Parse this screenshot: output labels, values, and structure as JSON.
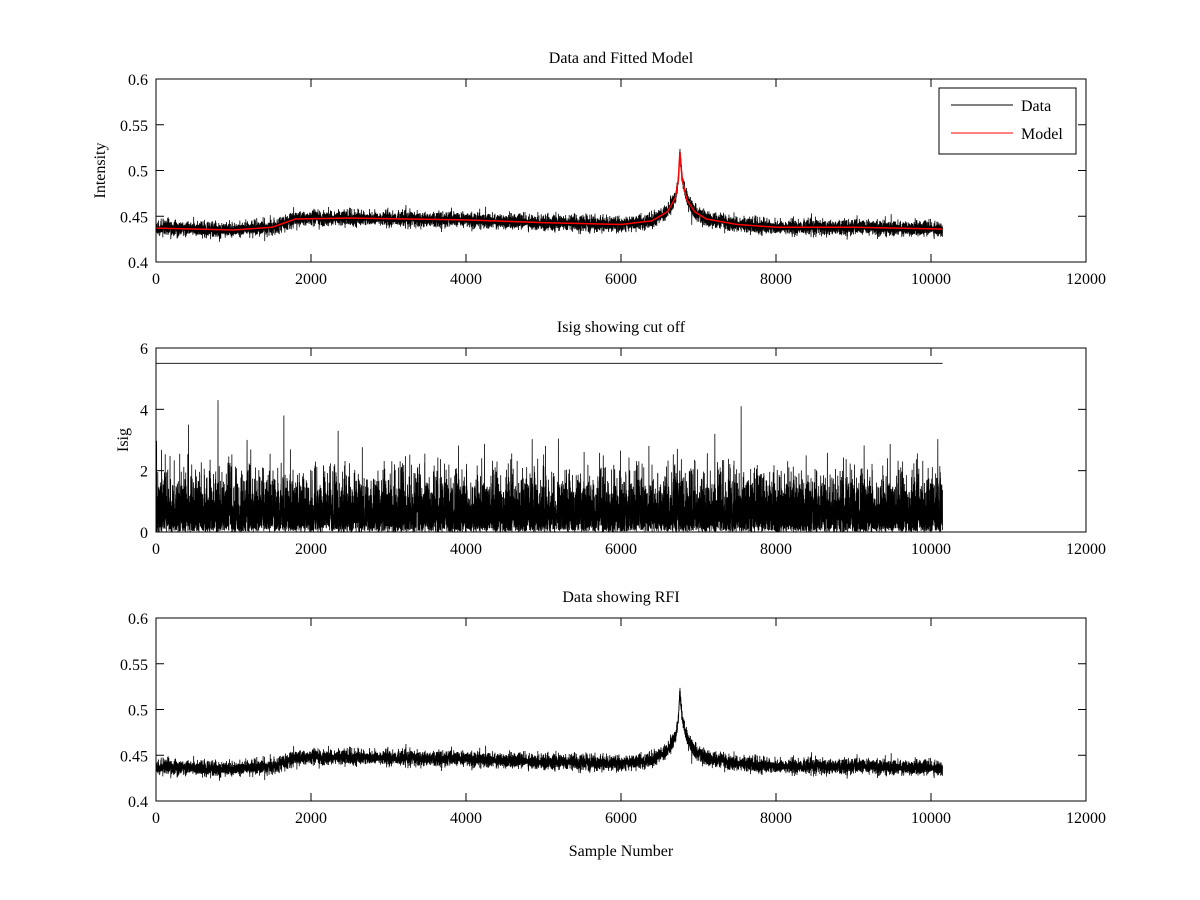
{
  "chart_data": [
    {
      "type": "line",
      "title": "Data and Fitted Model",
      "xlabel": "",
      "ylabel": "Intensity",
      "xlim": [
        0,
        12000
      ],
      "ylim": [
        0.4,
        0.6
      ],
      "xticks": [
        "0",
        "2000",
        "4000",
        "6000",
        "8000",
        "10000",
        "12000"
      ],
      "yticks": [
        "0.4",
        "0.45",
        "0.5",
        "0.55",
        "0.6"
      ],
      "legend": {
        "position": "top-right",
        "entries": [
          "Data",
          "Model"
        ]
      },
      "series": [
        {
          "name": "Data",
          "color": "#000000",
          "kind": "model_plus_noise",
          "noise_sd": 0.004,
          "n_samples": 10150
        },
        {
          "name": "Model",
          "color": "#ff0000",
          "kind": "model"
        }
      ]
    },
    {
      "type": "line",
      "title": "Isig showing cut off",
      "xlabel": "",
      "ylabel": "Isig",
      "xlim": [
        0,
        12000
      ],
      "ylim": [
        0,
        6
      ],
      "xticks": [
        "0",
        "2000",
        "4000",
        "6000",
        "8000",
        "10000",
        "12000"
      ],
      "yticks": [
        "0",
        "2",
        "4",
        "6"
      ],
      "series": [
        {
          "name": "Isig",
          "color": "#000000",
          "kind": "abs_noise",
          "scale": 0.85,
          "spikes": [
            [
              800,
              4.3
            ],
            [
              1650,
              3.8
            ],
            [
              7550,
              4.1
            ],
            [
              420,
              3.5
            ],
            [
              2350,
              3.3
            ]
          ]
        },
        {
          "name": "Cut off",
          "color": "#000000",
          "x": [
            0,
            10150
          ],
          "y": [
            5.5,
            5.5
          ]
        }
      ]
    },
    {
      "type": "line",
      "title": "Data showing RFI",
      "xlabel": "Sample Number",
      "ylabel": "",
      "xlim": [
        0,
        12000
      ],
      "ylim": [
        0.4,
        0.6
      ],
      "xticks": [
        "0",
        "2000",
        "4000",
        "6000",
        "8000",
        "10000",
        "12000"
      ],
      "yticks": [
        "0.4",
        "0.45",
        "0.5",
        "0.55",
        "0.6"
      ],
      "series": [
        {
          "name": "Data",
          "color": "#000000",
          "kind": "model_plus_noise",
          "noise_sd": 0.004,
          "n_samples": 10150
        }
      ]
    }
  ],
  "model_curve": {
    "x": [
      0,
      1000,
      1500,
      1800,
      2500,
      4000,
      5000,
      6000,
      6400,
      6600,
      6700,
      6740,
      6760,
      6790,
      6850,
      6950,
      7100,
      7500,
      8000,
      9000,
      10150
    ],
    "y": [
      0.437,
      0.435,
      0.438,
      0.447,
      0.448,
      0.446,
      0.443,
      0.441,
      0.445,
      0.455,
      0.47,
      0.49,
      0.52,
      0.49,
      0.468,
      0.455,
      0.447,
      0.441,
      0.438,
      0.438,
      0.436
    ]
  }
}
